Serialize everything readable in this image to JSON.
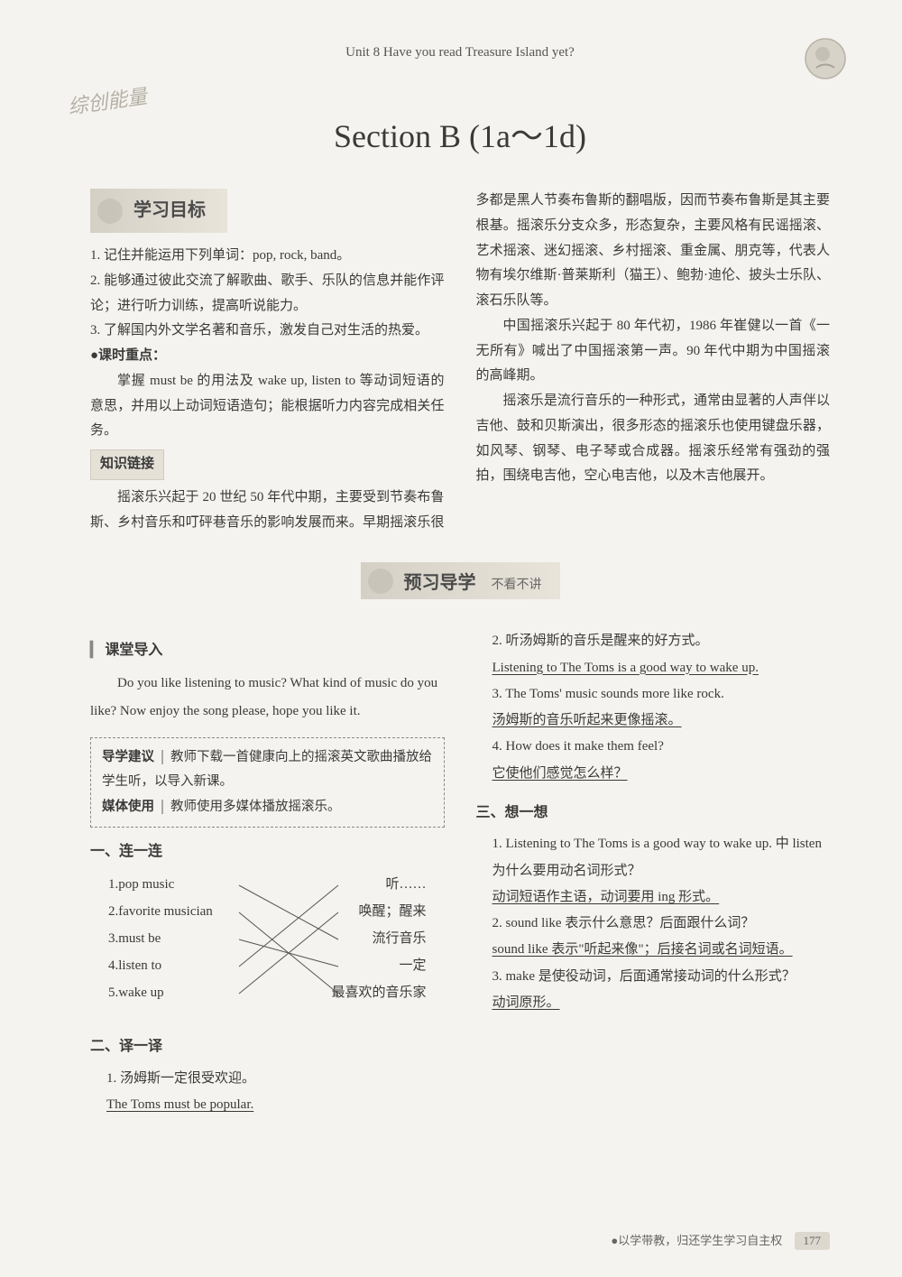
{
  "header": {
    "unit_text": "Unit 8  Have you read Treasure Island yet?"
  },
  "watermark": "综创能量",
  "section_title": "Section B (1a～1d)",
  "banners": {
    "objectives": "学习目标",
    "knowledge_link": "知识链接",
    "preview": "预习导学",
    "preview_sub": "不看不讲"
  },
  "objectives": {
    "item1": "1. 记住并能运用下列单词：pop, rock, band。",
    "item2": "2. 能够通过彼此交流了解歌曲、歌手、乐队的信息并能作评论；进行听力训练，提高听说能力。",
    "item3": "3. 了解国内外文学名著和音乐，激发自己对生活的热爱。",
    "focus_label": "●课时重点：",
    "focus_text": "掌握 must be 的用法及 wake up, listen to 等动词短语的意思，并用以上动词短语造句；能根据听力内容完成相关任务。"
  },
  "knowledge": {
    "p1": "摇滚乐兴起于 20 世纪 50 年代中期，主要受到节奏布鲁斯、乡村音乐和叮砰巷音乐的影响发展而来。早期摇滚乐很多都是黑人节奏布鲁斯的翻唱版，因而节奏布鲁斯是其主要根基。摇滚乐分支众多，形态复杂，主要风格有民谣摇滚、艺术摇滚、迷幻摇滚、乡村摇滚、重金属、朋克等，代表人物有埃尔维斯·普莱斯利（猫王）、鲍勃·迪伦、披头士乐队、滚石乐队等。",
    "p2": "中国摇滚乐兴起于 80 年代初，1986 年崔健以一首《一无所有》喊出了中国摇滚第一声。90 年代中期为中国摇滚的高峰期。",
    "p3": "摇滚乐是流行音乐的一种形式，通常由显著的人声伴以吉他、鼓和贝斯演出，很多形态的摇滚乐也使用键盘乐器，如风琴、钢琴、电子琴或合成器。摇滚乐经常有强劲的强拍，围绕电吉他，空心电吉他，以及木吉他展开。"
  },
  "class_intro": {
    "label": "课堂导入",
    "text": "Do you like listening to music? What kind of music do you like? Now enjoy the song please, hope you like it."
  },
  "suggestion": {
    "row1_label": "导学建议",
    "row1_text": "教师下载一首健康向上的摇滚英文歌曲播放给学生听，以导入新课。",
    "row2_label": "媒体使用",
    "row2_text": "教师使用多媒体播放摇滚乐。"
  },
  "ex1": {
    "heading": "一、连一连",
    "left": [
      "1.pop music",
      "2.favorite musician",
      "3.must be",
      "4.listen to",
      "5.wake up"
    ],
    "right": [
      "听……",
      "唤醒；醒来",
      "流行音乐",
      "一定",
      "最喜欢的音乐家"
    ],
    "lines": [
      {
        "from": 0,
        "to": 2
      },
      {
        "from": 1,
        "to": 4
      },
      {
        "from": 2,
        "to": 3
      },
      {
        "from": 3,
        "to": 0
      },
      {
        "from": 4,
        "to": 1
      }
    ]
  },
  "ex2": {
    "heading": "二、译一译",
    "items": [
      {
        "q": "1. 汤姆斯一定很受欢迎。",
        "a": "The Toms must be popular."
      },
      {
        "q": "2. 听汤姆斯的音乐是醒来的好方式。",
        "a": "Listening to The Toms is a good way to wake up."
      },
      {
        "q": "3. The Toms' music sounds more like rock.",
        "a": "汤姆斯的音乐听起来更像摇滚。"
      },
      {
        "q": "4. How does it make them feel?",
        "a": "它使他们感觉怎么样？"
      }
    ]
  },
  "ex3": {
    "heading": "三、想一想",
    "items": [
      {
        "q": "1. Listening to The Toms is a good way to wake up. 中 listen 为什么要用动名词形式？",
        "a": "动词短语作主语，动词要用 ing 形式。"
      },
      {
        "q": "2. sound like 表示什么意思？后面跟什么词？",
        "a": "sound like 表示\"听起来像\"；后接名词或名词短语。"
      },
      {
        "q": "3. make 是使役动词，后面通常接动词的什么形式？",
        "a": "动词原形。"
      }
    ]
  },
  "footer": {
    "text": "●以学带教，归还学生学习自主权",
    "page": "177"
  },
  "colors": {
    "bg": "#f5f3ef",
    "text": "#3a3a3a",
    "banner_bg": "#d4d0c6",
    "box_border": "#888"
  }
}
